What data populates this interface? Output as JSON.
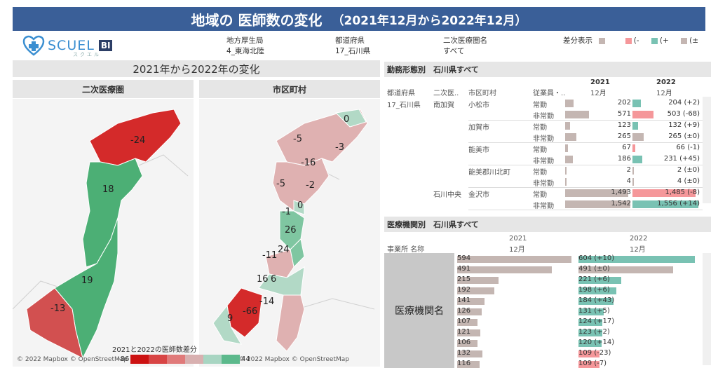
{
  "header": {
    "title": "地域の 医師数の変化",
    "subtitle": "（2021年12月から2022年12月）"
  },
  "logo": {
    "name": "SCUEL",
    "badge": "BI",
    "kana": "スクエル"
  },
  "filters": [
    {
      "label": "地方厚生局",
      "value": "4_東海北陸"
    },
    {
      "label": "都道府県",
      "value": "17_石川県"
    },
    {
      "label": "二次医療圏名",
      "value": "すべて"
    }
  ],
  "diff_legend": {
    "label": "差分表示",
    "items": [
      "(-",
      "(+",
      "(±"
    ],
    "colors": {
      "base": "#c4b6b2",
      "minus": "#f5979a",
      "plus": "#79c2b3",
      "zero": "#c4b6b2"
    }
  },
  "left_panel": {
    "title": "2021年から2022年の変化",
    "map1": {
      "header": "二次医療圏",
      "labels": [
        "-24",
        "18",
        "19",
        "-13"
      ]
    },
    "map2": {
      "header": "市区町村",
      "labels": [
        "0",
        "-5",
        "-3",
        "-16",
        "-5",
        "-2",
        "0",
        "-1",
        "26",
        "-11",
        "24",
        "16",
        "6",
        "-14",
        "-66",
        "9"
      ]
    },
    "copyright": "© 2022 Mapbox © OpenStreetMap",
    "scale": {
      "title": "2021と2022の医師数差分",
      "min": "-86",
      "max": "44",
      "colors": [
        "#cc1111",
        "#d84444",
        "#e07a7a",
        "#d8b0b0",
        "#a8d5c2",
        "#5cb98c"
      ]
    }
  },
  "work_table": {
    "title": "勤務形態別　石川県すべて",
    "col_headers": [
      "都道府県",
      "二次医..",
      "市区町村",
      "従業員・.."
    ],
    "year1": "2021",
    "year2": "2022",
    "month": "12月",
    "pref": "17_石川県",
    "rows": [
      {
        "region": "南加賀",
        "city": "小松市",
        "type": "常勤",
        "v1": "202",
        "v2": "204 (+2)",
        "b1": 202,
        "b2": 204,
        "c2": "teal"
      },
      {
        "region": "",
        "city": "",
        "type": "非常勤",
        "v1": "571",
        "v2": "503 (-68)",
        "b1": 571,
        "b2": 503,
        "c2": "pink"
      },
      {
        "region": "",
        "city": "加賀市",
        "type": "常勤",
        "v1": "123",
        "v2": "132 (+9)",
        "b1": 123,
        "b2": 132,
        "c2": "teal"
      },
      {
        "region": "",
        "city": "",
        "type": "非常勤",
        "v1": "265",
        "v2": "265 (±0)",
        "b1": 265,
        "b2": 265,
        "c2": "grey"
      },
      {
        "region": "",
        "city": "能美市",
        "type": "常勤",
        "v1": "67",
        "v2": "66 (-1)",
        "b1": 67,
        "b2": 66,
        "c2": "pink"
      },
      {
        "region": "",
        "city": "",
        "type": "非常勤",
        "v1": "186",
        "v2": "231 (+45)",
        "b1": 186,
        "b2": 231,
        "c2": "teal"
      },
      {
        "region": "",
        "city": "能美郡川北町",
        "type": "常勤",
        "v1": "2",
        "v2": "2 (±0)",
        "b1": 2,
        "b2": 2,
        "c2": "grey"
      },
      {
        "region": "",
        "city": "",
        "type": "非常勤",
        "v1": "4",
        "v2": "4 (±0)",
        "b1": 4,
        "b2": 4,
        "c2": "grey"
      },
      {
        "region": "石川中央",
        "city": "金沢市",
        "type": "常勤",
        "v1": "1,493",
        "v2": "1,485 (-8)",
        "b1": 1493,
        "b2": 1485,
        "c2": "pink"
      },
      {
        "region": "",
        "city": "",
        "type": "非常勤",
        "v1": "1,542",
        "v2": "1,556 (+14)",
        "b1": 1542,
        "b2": 1556,
        "c2": "teal"
      }
    ]
  },
  "inst_table": {
    "title": "医療機関別　石川県すべて",
    "col_header": "事業所 名称",
    "year1": "2021",
    "year2": "2022",
    "month": "12月",
    "row_label": "医療機関名",
    "rows": [
      {
        "v1": "594",
        "v2": "604 (+10)",
        "b1": 594,
        "b2": 604,
        "c2": "teal"
      },
      {
        "v1": "491",
        "v2": "491 (±0)",
        "b1": 491,
        "b2": 491,
        "c2": "grey"
      },
      {
        "v1": "215",
        "v2": "221 (+6)",
        "b1": 215,
        "b2": 221,
        "c2": "teal"
      },
      {
        "v1": "192",
        "v2": "198 (+6)",
        "b1": 192,
        "b2": 198,
        "c2": "teal"
      },
      {
        "v1": "141",
        "v2": "184 (+43)",
        "b1": 141,
        "b2": 184,
        "c2": "teal"
      },
      {
        "v1": "126",
        "v2": "131 (+5)",
        "b1": 126,
        "b2": 131,
        "c2": "teal"
      },
      {
        "v1": "107",
        "v2": "124 (+17)",
        "b1": 107,
        "b2": 124,
        "c2": "teal"
      },
      {
        "v1": "121",
        "v2": "123 (+2)",
        "b1": 121,
        "b2": 123,
        "c2": "teal"
      },
      {
        "v1": "106",
        "v2": "120 (+14)",
        "b1": 106,
        "b2": 120,
        "c2": "teal"
      },
      {
        "v1": "132",
        "v2": "109 (-23)",
        "b1": 132,
        "b2": 109,
        "c2": "pink"
      },
      {
        "v1": "116",
        "v2": "109 (-7)",
        "b1": 116,
        "b2": 109,
        "c2": "pink"
      }
    ]
  }
}
